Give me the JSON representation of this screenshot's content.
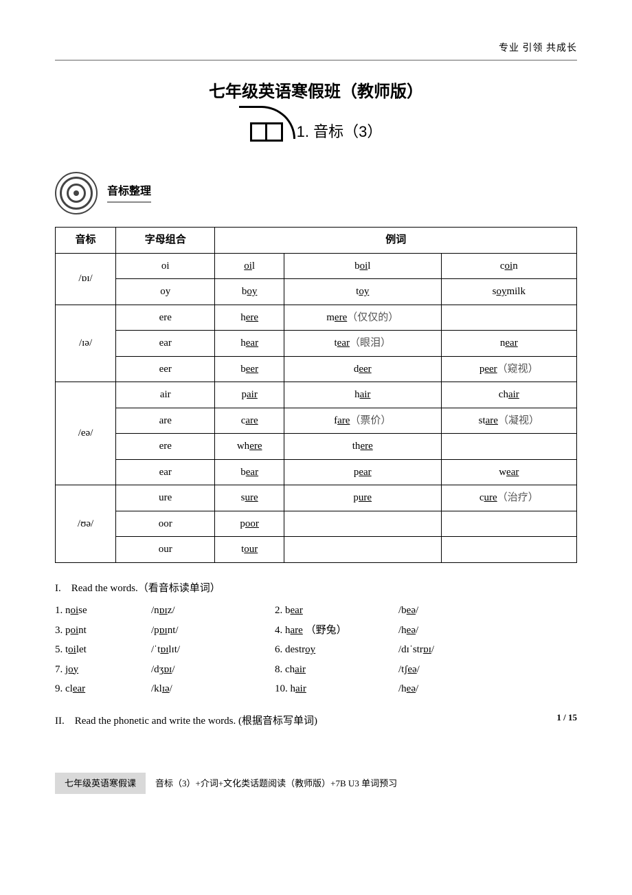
{
  "header": {
    "tagline": "专业 引领 共成长"
  },
  "title": "七年级英语寒假班（教师版）",
  "section1": {
    "label": "1. 音标（3）"
  },
  "subsection": {
    "label": "音标整理"
  },
  "table": {
    "headers": {
      "c1": "音标",
      "c2": "字母组合",
      "c3": "例词"
    },
    "groups": [
      {
        "symbol": "/ɒɪ/",
        "rows": [
          {
            "combo": "oi",
            "w1_pre": "",
            "w1_u": "oi",
            "w1_post": "l",
            "w2_pre": "b",
            "w2_u": "oi",
            "w2_post": "l",
            "w3_pre": "c",
            "w3_u": "oi",
            "w3_post": "n"
          },
          {
            "combo": "oy",
            "w1_pre": "b",
            "w1_u": "oy",
            "w1_post": "",
            "w2_pre": "t",
            "w2_u": "oy",
            "w2_post": "",
            "w3_pre": "s",
            "w3_u": "oy",
            "w3_post": "milk"
          }
        ]
      },
      {
        "symbol": "/ɪə/",
        "rows": [
          {
            "combo": "ere",
            "w1_pre": "h",
            "w1_u": "ere",
            "w1_post": "",
            "w2_pre": "m",
            "w2_u": "ere",
            "w2_post": "（仅仅的）",
            "w3_pre": "",
            "w3_u": "",
            "w3_post": ""
          },
          {
            "combo": "ear",
            "w1_pre": "h",
            "w1_u": "ear",
            "w1_post": "",
            "w2_pre": "t",
            "w2_u": "ear",
            "w2_post": "（眼泪）",
            "w3_pre": "n",
            "w3_u": "ear",
            "w3_post": ""
          },
          {
            "combo": "eer",
            "w1_pre": "b",
            "w1_u": "eer",
            "w1_post": "",
            "w2_pre": "d",
            "w2_u": "eer",
            "w2_post": "",
            "w3_pre": "p",
            "w3_u": "eer",
            "w3_post": "（窥视）"
          }
        ]
      },
      {
        "symbol": "/eə/",
        "rows": [
          {
            "combo": "air",
            "w1_pre": "p",
            "w1_u": "air",
            "w1_post": "",
            "w2_pre": "h",
            "w2_u": "air",
            "w2_post": "",
            "w3_pre": "ch",
            "w3_u": "air",
            "w3_post": ""
          },
          {
            "combo": "are",
            "w1_pre": "c",
            "w1_u": "are",
            "w1_post": "",
            "w2_pre": "f",
            "w2_u": "are",
            "w2_post": "（票价）",
            "w3_pre": "st",
            "w3_u": "are",
            "w3_post": "（凝视）"
          },
          {
            "combo": "ere",
            "w1_pre": "wh",
            "w1_u": "ere",
            "w1_post": "",
            "w2_pre": "th",
            "w2_u": "ere",
            "w2_post": "",
            "w3_pre": "",
            "w3_u": "",
            "w3_post": ""
          },
          {
            "combo": "ear",
            "w1_pre": "b",
            "w1_u": "ear",
            "w1_post": "",
            "w2_pre": "p",
            "w2_u": "ear",
            "w2_post": "",
            "w3_pre": "w",
            "w3_u": "ear",
            "w3_post": ""
          }
        ]
      },
      {
        "symbol": "/ʊə/",
        "rows": [
          {
            "combo": "ure",
            "w1_pre": "s",
            "w1_u": "ure",
            "w1_post": "",
            "w2_pre": "p",
            "w2_u": "ure",
            "w2_post": "",
            "w3_pre": "c",
            "w3_u": "ure",
            "w3_post": "（治疗）"
          },
          {
            "combo": "oor",
            "w1_pre": "p",
            "w1_u": "oor",
            "w1_post": "",
            "w2_pre": "",
            "w2_u": "",
            "w2_post": "",
            "w3_pre": "",
            "w3_u": "",
            "w3_post": ""
          },
          {
            "combo": "our",
            "w1_pre": "t",
            "w1_u": "our",
            "w1_post": "",
            "w2_pre": "",
            "w2_u": "",
            "w2_post": "",
            "w3_pre": "",
            "w3_u": "",
            "w3_post": ""
          }
        ]
      }
    ]
  },
  "ex1": {
    "title": "I.　Read the words.（看音标读单词）",
    "rows": [
      {
        "n1": "1. n",
        "u1": "oi",
        "p1": "se",
        "ph1_pre": "/n",
        "ph1_u": "ɒɪ",
        "ph1_post": "z/",
        "n2": "2. b",
        "u2": "ear",
        "p2": "",
        "ph2_pre": "/b",
        "ph2_u": "eə",
        "ph2_post": "/"
      },
      {
        "n1": "3. p",
        "u1": "oi",
        "p1": "nt",
        "ph1_pre": "/p",
        "ph1_u": "ɒɪ",
        "ph1_post": "nt/",
        "n2": "4. h",
        "u2": "are",
        "p2": " （野兔）",
        "ph2_pre": "/h",
        "ph2_u": "eə",
        "ph2_post": "/"
      },
      {
        "n1": "5. t",
        "u1": "oi",
        "p1": "let",
        "ph1_pre": "/ˈt",
        "ph1_u": "ɒɪ",
        "ph1_post": "lɪt/",
        "n2": "6. destr",
        "u2": "oy",
        "p2": "",
        "ph2_pre": "/dɪˈstr",
        "ph2_u": "ɒɪ",
        "ph2_post": "/"
      },
      {
        "n1": "7. ",
        "u1": "joy",
        "p1": "",
        "ph1_pre": "/dʒ",
        "ph1_u": "ɒɪ",
        "ph1_post": "/",
        "n2": "8. ch",
        "u2": "air",
        "p2": "",
        "ph2_pre": "/tʃ",
        "ph2_u": "eə",
        "ph2_post": "/"
      },
      {
        "n1": "9. cl",
        "u1": "ear",
        "p1": "",
        "ph1_pre": "/kl",
        "ph1_u": "ɪə",
        "ph1_post": "/",
        "n2": "10. h",
        "u2": "air",
        "p2": "",
        "ph2_pre": "/h",
        "ph2_u": "eə",
        "ph2_post": "/"
      }
    ]
  },
  "ex2": {
    "title": "II.　Read the phonetic and write the words. (根据音标写单词)"
  },
  "footer": {
    "tab": "七年级英语寒假课",
    "text": "音标（3）+介词+文化类话题阅读（教师版）+7B U3 单词预习",
    "page": "1 / 15"
  }
}
